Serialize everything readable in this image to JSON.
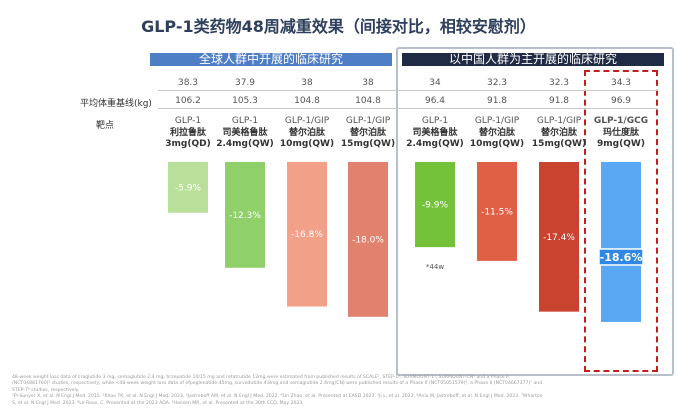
{
  "title": "GLP-1类药物48周减重效果（间接对比，相较安慰剂）",
  "banners": {
    "global": "全球人群中开展的临床研究",
    "china": "以中国人群为主开展的临床研究"
  },
  "row_labels": {
    "weight": "平均体重基线(kg)",
    "target": "靶点"
  },
  "chart_data": {
    "type": "bar",
    "categories": [
      "利拉鲁肽 3mg(QD)",
      "司美格鲁肽 2.4mg(QW)",
      "替尔泊肽 10mg(QW)",
      "替尔泊肽 15mg(QW)",
      "司美格鲁肽 2.4mg(QW)",
      "替尔泊肽 10mg(QW)",
      "替尔泊肽 15mg(QW)",
      "玛仕度肽 9mg(QW)"
    ],
    "rows_top": [
      "38.3",
      "37.9",
      "38",
      "38",
      "34",
      "32.3",
      "32.3",
      "34.3"
    ],
    "baseline_weight": [
      "106.2",
      "105.3",
      "104.8",
      "104.8",
      "96.4",
      "91.8",
      "91.8",
      "96.9"
    ],
    "targets": [
      "GLP-1",
      "GLP-1",
      "GLP-1/GIP",
      "GLP-1/GIP",
      "GLP-1",
      "GLP-1/GIP",
      "GLP-1/GIP",
      "GLP-1/GCG"
    ],
    "drug_lines": [
      [
        "利拉鲁肽",
        "3mg(QD)"
      ],
      [
        "司美格鲁肽",
        "2.4mg(QW)"
      ],
      [
        "替尔泊肽",
        "10mg(QW)"
      ],
      [
        "替尔泊肽",
        "15mg(QW)"
      ],
      [
        "司美格鲁肽",
        "2.4mg(QW)"
      ],
      [
        "替尔泊肽",
        "10mg(QW)"
      ],
      [
        "替尔泊肽",
        "15mg(QW)"
      ],
      [
        "玛仕度肽",
        "9mg(QW)"
      ]
    ],
    "values": [
      -5.9,
      -12.3,
      -16.8,
      -18.0,
      -9.9,
      -11.5,
      -17.4,
      -18.6
    ],
    "labels": [
      "-5.9%",
      "-12.3%",
      "-16.8%",
      "-18.0%",
      "-9.9%",
      "-11.5%",
      "-17.4%",
      "-18.6%"
    ],
    "colors": [
      "#b9e09a",
      "#8fd06a",
      "#f3a089",
      "#e0826e",
      "#74c13a",
      "#e06045",
      "#c9432e",
      "#5aa8f4"
    ],
    "annotation": "*44w",
    "ylim": [
      -20,
      0
    ]
  },
  "footnote": "48-week weight loss data of liraglutide 3 mg, semaglutide 2.4 mg, tirzepatide 10/15 mg and retatrutide 12mg were estimated from published results of SCALE¹, STEP-1², SURMOUNT-1³, SURMOUNT-CN⁴ and a Phase II\n(NCT04881760)⁵ studies, respectively; while <48-week weight loss data of efpeglenatide 45mg, survodutide 4.8mg and semaglutide 2.4mg(CN) were published results of a Phase II (NCT05051579)⁶, a Phase II (NCT04667377)⁷ and\nSTEP-7⁸ studies, respectively.\n¹Pi-Sunyer X, et al. N Engl J Med. 2015. ²Khoo TK, et al. N Engl J Med. 2023. ³Jastreboff AM, et al. N Engl J Med. 2022. ⁴Lin Zhao, et al. Presented at EASD 2023. ⁵Ji L, et al. 2023. ⁶Ania M, Jastreboff, et al. N Engl J Med. 2023. ⁷Wharton\nS, et al. N Engl J Med. 2023. ⁸Le Roux, C. Presented at the 2023 ADA. ⁹Hansen MR, et al. Presented at the 30th ECO, May 2023"
}
